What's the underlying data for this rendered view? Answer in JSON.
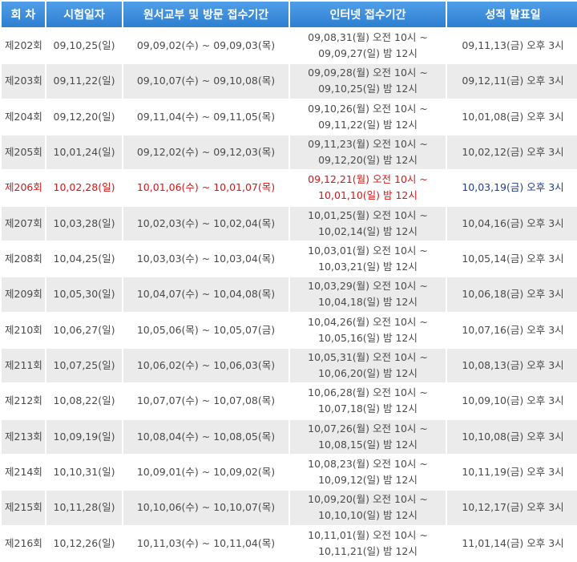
{
  "table": {
    "headers": [
      "회 차",
      "시험일자",
      "원서교부 및 방문 접수기간",
      "인터넷 접수기간",
      "성적 발표일"
    ],
    "rows": [
      {
        "round": "제202회",
        "exam_date": "09,10,25(일)",
        "visit_period": "09,09,02(수) ~ 09,09,03(목)",
        "internet_start": "09,08,31(월) 오전 10시 ~",
        "internet_end": "09,09,27(일) 밤 12시",
        "result_date": "09,11,13(금) 오후 3시"
      },
      {
        "round": "제203회",
        "exam_date": "09,11,22(일)",
        "visit_period": "09,10,07(수) ~ 09,10,08(목)",
        "internet_start": "09,09,28(월) 오전 10시 ~",
        "internet_end": "09,10,25(일) 밤 12시",
        "result_date": "09,12,11(금) 오후 3시"
      },
      {
        "round": "제204회",
        "exam_date": "09,12,20(일)",
        "visit_period": "09,11,04(수) ~ 09,11,05(목)",
        "internet_start": "09,10,26(월) 오전 10시 ~",
        "internet_end": "09,11,22(일) 밤 12시",
        "result_date": "10,01,08(금) 오후 3시"
      },
      {
        "round": "제205회",
        "exam_date": "10,01,24(일)",
        "visit_period": "09,12,02(수) ~ 09,12,03(목)",
        "internet_start": "09,11,23(월) 오전 10시 ~",
        "internet_end": "09,12,20(일) 밤 12시",
        "result_date": "10,02,12(금) 오후 3시"
      },
      {
        "round": "제206회",
        "exam_date": "10,02,28(일)",
        "visit_period": "10,01,06(수) ~ 10,01,07(목)",
        "internet_start": "09,12,21(월) 오전 10시 ~",
        "internet_end": "10,01,10(일) 밤 12시",
        "result_date": "10,03,19(금) 오후 3시",
        "highlight": true
      },
      {
        "round": "제207회",
        "exam_date": "10,03,28(일)",
        "visit_period": "10,02,03(수) ~ 10,02,04(목)",
        "internet_start": "10,01,25(월) 오전 10시 ~",
        "internet_end": "10,02,14(일) 밤 12시",
        "result_date": "10,04,16(금) 오후 3시"
      },
      {
        "round": "제208회",
        "exam_date": "10,04,25(일)",
        "visit_period": "10,03,03(수) ~ 10,03,04(목)",
        "internet_start": "10,03,01(월) 오전 10시 ~",
        "internet_end": "10,03,21(일) 밤 12시",
        "result_date": "10,05,14(금) 오후 3시"
      },
      {
        "round": "제209회",
        "exam_date": "10,05,30(일)",
        "visit_period": "10,04,07(수) ~ 10,04,08(목)",
        "internet_start": "10,03,29(월) 오전 10시 ~",
        "internet_end": "10,04,18(일) 밤 12시",
        "result_date": "10,06,18(금) 오후 3시"
      },
      {
        "round": "제210회",
        "exam_date": "10,06,27(일)",
        "visit_period": "10,05,06(목) ~ 10,05,07(금)",
        "internet_start": "10,04,26(월) 오전 10시 ~",
        "internet_end": "10,05,16(일) 밤 12시",
        "result_date": "10,07,16(금) 오후 3시"
      },
      {
        "round": "제211회",
        "exam_date": "10,07,25(일)",
        "visit_period": "10,06,02(수) ~ 10,06,03(목)",
        "internet_start": "10,05,31(월) 오전 10시 ~",
        "internet_end": "10,06,20(일) 밤 12시",
        "result_date": "10,08,13(금) 오후 3시"
      },
      {
        "round": "제212회",
        "exam_date": "10,08,22(일)",
        "visit_period": "10,07,07(수) ~ 10,07,08(목)",
        "internet_start": "10,06,28(월) 오전 10시 ~",
        "internet_end": "10,07,18(일) 밤 12시",
        "result_date": "10,09,10(금) 오후 3시"
      },
      {
        "round": "제213회",
        "exam_date": "10,09,19(일)",
        "visit_period": "10,08,04(수) ~ 10,08,05(목)",
        "internet_start": "10,07,26(월) 오전 10시 ~",
        "internet_end": "10,08,15(일) 밤 12시",
        "result_date": "10,10,08(금) 오후 3시"
      },
      {
        "round": "제214회",
        "exam_date": "10,10,31(일)",
        "visit_period": "10,09,01(수) ~ 10,09,02(목)",
        "internet_start": "10,08,23(월) 오전 10시 ~",
        "internet_end": "10,09,12(일) 밤 12시",
        "result_date": "10,11,19(금) 오후 3시"
      },
      {
        "round": "제215회",
        "exam_date": "10,11,28(일)",
        "visit_period": "10,10,06(수) ~ 10,10,07(목)",
        "internet_start": "10,09,20(월) 오전 10시 ~",
        "internet_end": "10,10,10(일) 밤 12시",
        "result_date": "10,12,17(금) 오후 3시"
      },
      {
        "round": "제216회",
        "exam_date": "10,12,26(일)",
        "visit_period": "10,11,03(수) ~ 10,11,04(목)",
        "internet_start": "10,11,01(월) 오전 10시 ~",
        "internet_end": "10,11,21(일) 밤 12시",
        "result_date": "11,01,14(금) 오후 3시"
      }
    ]
  },
  "colors": {
    "header_bg": "#3a8ad9",
    "header_text": "#ffffff",
    "row_even_bg": "#ebebeb",
    "highlight_text": "#d01818",
    "result_text": "#1f3d96"
  }
}
